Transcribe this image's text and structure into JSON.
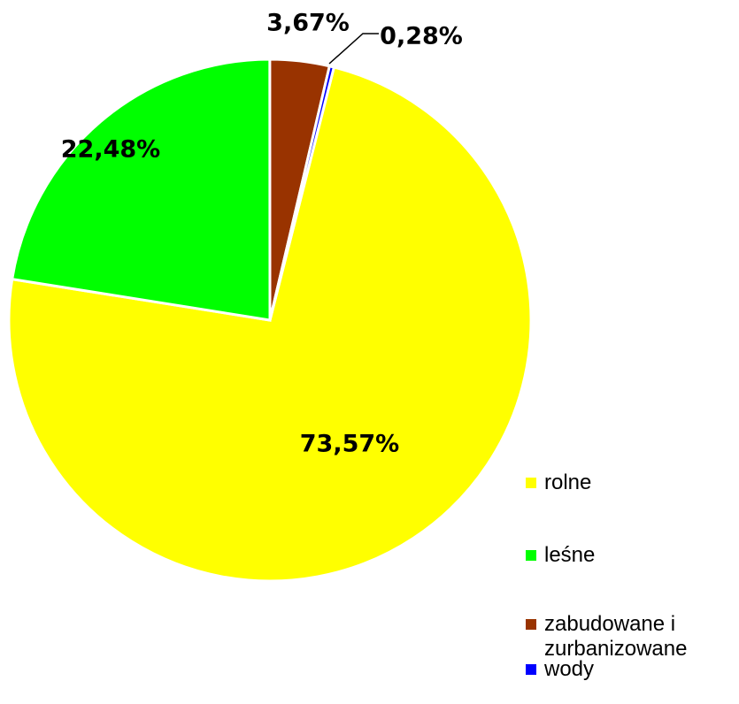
{
  "chart_data": {
    "type": "pie",
    "categories": [
      "rolne",
      "leśne",
      "zabudowane i zurbanizowane",
      "wody"
    ],
    "values": [
      73.57,
      22.48,
      3.67,
      0.28
    ],
    "value_labels": [
      "73,57%",
      "22,48%",
      "3,67%",
      "0,28%"
    ],
    "colors": [
      "#ffff00",
      "#00ff00",
      "#993300",
      "#0000ff"
    ],
    "legend": "right"
  }
}
